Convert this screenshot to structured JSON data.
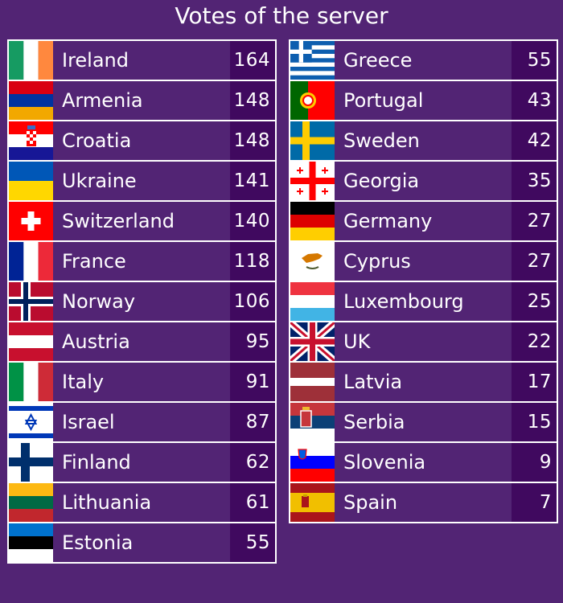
{
  "title": "Votes of the server",
  "left": [
    {
      "country": "Ireland",
      "score": "164",
      "flag": "ireland-flag-icon"
    },
    {
      "country": "Armenia",
      "score": "148",
      "flag": "armenia-flag-icon"
    },
    {
      "country": "Croatia",
      "score": "148",
      "flag": "croatia-flag-icon"
    },
    {
      "country": "Ukraine",
      "score": "141",
      "flag": "ukraine-flag-icon"
    },
    {
      "country": "Switzerland",
      "score": "140",
      "flag": "switzerland-flag-icon"
    },
    {
      "country": "France",
      "score": "118",
      "flag": "france-flag-icon"
    },
    {
      "country": "Norway",
      "score": "106",
      "flag": "norway-flag-icon"
    },
    {
      "country": "Austria",
      "score": "95",
      "flag": "austria-flag-icon"
    },
    {
      "country": "Italy",
      "score": "91",
      "flag": "italy-flag-icon"
    },
    {
      "country": "Israel",
      "score": "87",
      "flag": "israel-flag-icon"
    },
    {
      "country": "Finland",
      "score": "62",
      "flag": "finland-flag-icon"
    },
    {
      "country": "Lithuania",
      "score": "61",
      "flag": "lithuania-flag-icon"
    },
    {
      "country": "Estonia",
      "score": "55",
      "flag": "estonia-flag-icon"
    }
  ],
  "right": [
    {
      "country": "Greece",
      "score": "55",
      "flag": "greece-flag-icon"
    },
    {
      "country": "Portugal",
      "score": "43",
      "flag": "portugal-flag-icon"
    },
    {
      "country": "Sweden",
      "score": "42",
      "flag": "sweden-flag-icon"
    },
    {
      "country": "Georgia",
      "score": "35",
      "flag": "georgia-flag-icon"
    },
    {
      "country": "Germany",
      "score": "27",
      "flag": "germany-flag-icon"
    },
    {
      "country": "Cyprus",
      "score": "27",
      "flag": "cyprus-flag-icon"
    },
    {
      "country": "Luxembourg",
      "score": "25",
      "flag": "luxembourg-flag-icon"
    },
    {
      "country": "UK",
      "score": "22",
      "flag": "uk-flag-icon"
    },
    {
      "country": "Latvia",
      "score": "17",
      "flag": "latvia-flag-icon"
    },
    {
      "country": "Serbia",
      "score": "15",
      "flag": "serbia-flag-icon"
    },
    {
      "country": "Slovenia",
      "score": "9",
      "flag": "slovenia-flag-icon"
    },
    {
      "country": "Spain",
      "score": "7",
      "flag": "spain-flag-icon"
    }
  ],
  "colors": {
    "background": "#522474",
    "score_cell": "#40095f",
    "border": "#ffffff"
  }
}
